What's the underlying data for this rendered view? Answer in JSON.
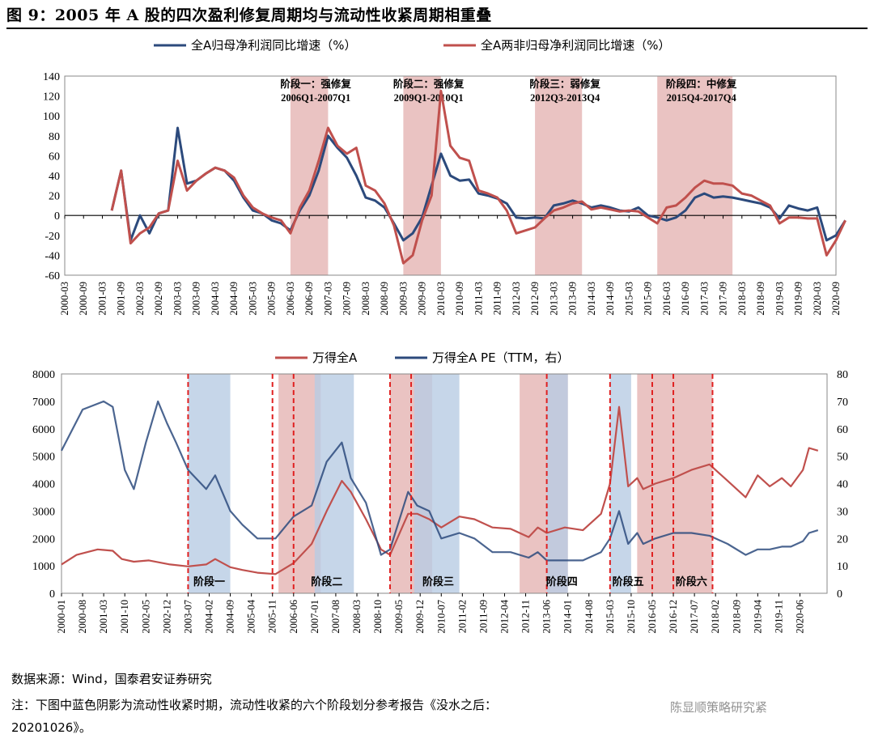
{
  "title": "图 9：2005 年 A 股的四次盈利修复周期均与流动性收紧周期相重叠",
  "colors": {
    "blue": "#2c4a7c",
    "red": "#c0504d",
    "bar_red": "#e6b8b7",
    "bar_blue": "#b8cce4",
    "dashed": "#e02020"
  },
  "footer": {
    "source": "数据来源：Wind，国泰君安证券研究",
    "note_line1": "注：下图中蓝色阴影为流动性收紧时期，流动性收紧的六个阶段划分参考报告《没水之后：",
    "note_line2": "20201026》。",
    "watermark": "陈显顺策略研究紧"
  },
  "chart_data": [
    {
      "type": "line",
      "legend": [
        "全A归母净利润同比增速（%）",
        "全A两非归母净利润同比增速（%）"
      ],
      "ylim": [
        -60,
        140
      ],
      "yticks": [
        -60,
        -40,
        -20,
        0,
        20,
        40,
        60,
        80,
        100,
        120,
        140
      ],
      "xticks": [
        "2000-03",
        "2000-09",
        "2001-03",
        "2001-09",
        "2002-03",
        "2002-09",
        "2003-03",
        "2003-09",
        "2004-03",
        "2004-09",
        "2005-03",
        "2005-09",
        "2006-03",
        "2006-09",
        "2007-03",
        "2007-09",
        "2008-03",
        "2008-09",
        "2009-03",
        "2009-09",
        "2010-03",
        "2010-09",
        "2011-03",
        "2011-09",
        "2012-03",
        "2012-09",
        "2013-03",
        "2013-09",
        "2014-03",
        "2014-09",
        "2015-03",
        "2015-09",
        "2016-03",
        "2016-09",
        "2017-03",
        "2017-09",
        "2018-03",
        "2018-09",
        "2019-03",
        "2019-09",
        "2020-03",
        "2020-09"
      ],
      "shaded_periods": [
        {
          "label": "阶段一：强修复",
          "range": "2006Q1-2007Q1",
          "from": "2006-03",
          "to": "2007-03"
        },
        {
          "label": "阶段二：强修复",
          "range": "2009Q1-2010Q1",
          "from": "2009-03",
          "to": "2010-03"
        },
        {
          "label": "阶段三：弱修复",
          "range": "2012Q3-2013Q4",
          "from": "2012-09",
          "to": "2013-12"
        },
        {
          "label": "阶段四：中修复",
          "range": "2015Q4-2017Q4",
          "from": "2015-12",
          "to": "2017-12"
        }
      ],
      "series": [
        {
          "name": "全A归母净利润同比增速（%）",
          "x": [
            "2001-06",
            "2001-09",
            "2001-12",
            "2002-03",
            "2002-06",
            "2002-09",
            "2002-12",
            "2003-03",
            "2003-06",
            "2003-09",
            "2003-12",
            "2004-03",
            "2004-06",
            "2004-09",
            "2004-12",
            "2005-03",
            "2005-06",
            "2005-09",
            "2005-12",
            "2006-03",
            "2006-06",
            "2006-09",
            "2006-12",
            "2007-03",
            "2007-06",
            "2007-09",
            "2007-12",
            "2008-03",
            "2008-06",
            "2008-09",
            "2008-12",
            "2009-03",
            "2009-06",
            "2009-09",
            "2009-12",
            "2010-03",
            "2010-06",
            "2010-09",
            "2010-12",
            "2011-03",
            "2011-06",
            "2011-09",
            "2011-12",
            "2012-03",
            "2012-06",
            "2012-09",
            "2012-12",
            "2013-03",
            "2013-06",
            "2013-09",
            "2013-12",
            "2014-03",
            "2014-06",
            "2014-09",
            "2014-12",
            "2015-03",
            "2015-06",
            "2015-09",
            "2015-12",
            "2016-03",
            "2016-06",
            "2016-09",
            "2016-12",
            "2017-03",
            "2017-06",
            "2017-09",
            "2017-12",
            "2018-03",
            "2018-06",
            "2018-09",
            "2018-12",
            "2019-03",
            "2019-06",
            "2019-09",
            "2019-12",
            "2020-03",
            "2020-06",
            "2020-09",
            "2020-12"
          ],
          "values": [
            5,
            45,
            -25,
            0,
            -18,
            2,
            5,
            88,
            32,
            35,
            42,
            48,
            45,
            35,
            18,
            5,
            2,
            -5,
            -8,
            -15,
            5,
            20,
            45,
            80,
            68,
            58,
            40,
            18,
            15,
            8,
            -8,
            -25,
            -18,
            -2,
            30,
            62,
            40,
            35,
            36,
            22,
            20,
            17,
            12,
            -2,
            -3,
            -2,
            -3,
            10,
            12,
            15,
            12,
            8,
            10,
            8,
            5,
            4,
            8,
            0,
            -2,
            -5,
            -2,
            5,
            18,
            22,
            18,
            19,
            18,
            16,
            14,
            12,
            8,
            -3,
            10,
            7,
            5,
            8,
            -25,
            -20,
            -5
          ]
        },
        {
          "name": "全A两非归母净利润同比增速（%）",
          "x": [
            "2001-06",
            "2001-09",
            "2001-12",
            "2002-03",
            "2002-06",
            "2002-09",
            "2002-12",
            "2003-03",
            "2003-06",
            "2003-09",
            "2003-12",
            "2004-03",
            "2004-06",
            "2004-09",
            "2004-12",
            "2005-03",
            "2005-06",
            "2005-09",
            "2005-12",
            "2006-03",
            "2006-06",
            "2006-09",
            "2006-12",
            "2007-03",
            "2007-06",
            "2007-09",
            "2007-12",
            "2008-03",
            "2008-06",
            "2008-09",
            "2008-12",
            "2009-03",
            "2009-06",
            "2009-09",
            "2009-12",
            "2010-03",
            "2010-06",
            "2010-09",
            "2010-12",
            "2011-03",
            "2011-06",
            "2011-09",
            "2011-12",
            "2012-03",
            "2012-06",
            "2012-09",
            "2012-12",
            "2013-03",
            "2013-06",
            "2013-09",
            "2013-12",
            "2014-03",
            "2014-06",
            "2014-09",
            "2014-12",
            "2015-03",
            "2015-06",
            "2015-09",
            "2015-12",
            "2016-03",
            "2016-06",
            "2016-09",
            "2016-12",
            "2017-03",
            "2017-06",
            "2017-09",
            "2017-12",
            "2018-03",
            "2018-06",
            "2018-09",
            "2018-12",
            "2019-03",
            "2019-06",
            "2019-09",
            "2019-12",
            "2020-03",
            "2020-06",
            "2020-09",
            "2020-12"
          ],
          "values": [
            5,
            45,
            -28,
            -18,
            -12,
            2,
            5,
            55,
            25,
            35,
            42,
            48,
            45,
            38,
            20,
            8,
            2,
            -2,
            -5,
            -18,
            8,
            25,
            55,
            88,
            70,
            62,
            68,
            30,
            25,
            12,
            -10,
            -48,
            -40,
            -5,
            20,
            125,
            70,
            58,
            55,
            25,
            22,
            18,
            5,
            -18,
            -15,
            -12,
            -3,
            5,
            8,
            12,
            14,
            6,
            8,
            6,
            4,
            5,
            4,
            -2,
            -8,
            8,
            10,
            18,
            28,
            35,
            32,
            32,
            30,
            22,
            20,
            15,
            10,
            -8,
            -2,
            -2,
            -3,
            -3,
            -40,
            -25,
            -5
          ]
        }
      ]
    },
    {
      "type": "line",
      "legend": [
        "万得全A",
        "万得全A PE（TTM，右）"
      ],
      "ylim_left": [
        0,
        8000
      ],
      "ylim_right": [
        0,
        80
      ],
      "yticks_left": [
        0,
        1000,
        2000,
        3000,
        4000,
        5000,
        6000,
        7000,
        8000
      ],
      "yticks_right": [
        0,
        10,
        20,
        30,
        40,
        50,
        60,
        70,
        80
      ],
      "xticks": [
        "2000-01",
        "2000-08",
        "2001-03",
        "2001-10",
        "2002-05",
        "2002-12",
        "2003-07",
        "2004-02",
        "2004-09",
        "2005-04",
        "2005-11",
        "2006-06",
        "2007-01",
        "2007-08",
        "2008-03",
        "2008-10",
        "2009-05",
        "2009-12",
        "2010-07",
        "2011-02",
        "2011-09",
        "2012-04",
        "2012-11",
        "2013-06",
        "2014-01",
        "2014-08",
        "2015-03",
        "2015-10",
        "2016-05",
        "2016-12",
        "2017-07",
        "2018-02",
        "2018-09",
        "2019-04",
        "2019-11",
        "2020-06"
      ],
      "red_shaded": [
        [
          "2006-01",
          "2007-03"
        ],
        [
          "2009-02",
          "2010-04"
        ],
        [
          "2012-09",
          "2014-01"
        ],
        [
          "2015-12",
          "2018-01"
        ]
      ],
      "blue_shaded": [
        [
          "2003-07",
          "2004-09"
        ],
        [
          "2007-01",
          "2008-02"
        ],
        [
          "2009-10",
          "2011-01"
        ],
        [
          "2013-06",
          "2014-01"
        ],
        [
          "2015-03",
          "2015-10"
        ]
      ],
      "dashed_lines": [
        "2003-07",
        "2005-11",
        "2006-06",
        "2009-02",
        "2009-09",
        "2013-06",
        "2015-03",
        "2016-05",
        "2016-12",
        "2018-01"
      ],
      "phase_labels": [
        "阶段一",
        "阶段二",
        "阶段三",
        "阶段四",
        "阶段五",
        "阶段六"
      ],
      "series": [
        {
          "name": "万得全A",
          "axis": "left",
          "x": [
            "2000-01",
            "2000-06",
            "2001-01",
            "2001-06",
            "2001-09",
            "2002-01",
            "2002-06",
            "2003-01",
            "2003-07",
            "2004-01",
            "2004-04",
            "2004-09",
            "2005-01",
            "2005-06",
            "2005-12",
            "2006-06",
            "2006-12",
            "2007-05",
            "2007-10",
            "2008-01",
            "2008-06",
            "2008-11",
            "2009-02",
            "2009-08",
            "2009-11",
            "2010-03",
            "2010-07",
            "2011-01",
            "2011-06",
            "2011-12",
            "2012-06",
            "2012-12",
            "2013-03",
            "2013-06",
            "2013-12",
            "2014-06",
            "2014-12",
            "2015-03",
            "2015-06",
            "2015-09",
            "2015-12",
            "2016-02",
            "2016-06",
            "2016-12",
            "2017-06",
            "2017-12",
            "2018-06",
            "2018-12",
            "2019-04",
            "2019-08",
            "2019-12",
            "2020-03",
            "2020-07",
            "2020-09",
            "2020-12"
          ],
          "values": [
            1050,
            1400,
            1600,
            1550,
            1250,
            1150,
            1200,
            1050,
            980,
            1050,
            1250,
            950,
            850,
            750,
            700,
            1100,
            1800,
            3000,
            4100,
            3700,
            2700,
            1600,
            1400,
            2900,
            2900,
            2700,
            2400,
            2800,
            2700,
            2400,
            2350,
            2050,
            2400,
            2200,
            2400,
            2300,
            2900,
            4000,
            6800,
            3900,
            4200,
            3800,
            4000,
            4200,
            4500,
            4700,
            4100,
            3500,
            4300,
            3900,
            4200,
            3900,
            4500,
            5300,
            5200
          ]
        },
        {
          "name": "万得全A PE（TTM，右）",
          "axis": "right",
          "x": [
            "2000-01",
            "2000-08",
            "2001-03",
            "2001-06",
            "2001-10",
            "2002-01",
            "2002-05",
            "2002-09",
            "2002-12",
            "2003-03",
            "2003-07",
            "2004-01",
            "2004-04",
            "2004-09",
            "2005-01",
            "2005-06",
            "2005-12",
            "2006-06",
            "2006-12",
            "2007-05",
            "2007-10",
            "2008-01",
            "2008-06",
            "2008-11",
            "2009-02",
            "2009-08",
            "2009-11",
            "2010-03",
            "2010-07",
            "2011-01",
            "2011-06",
            "2011-12",
            "2012-06",
            "2012-12",
            "2013-03",
            "2013-06",
            "2013-12",
            "2014-06",
            "2014-12",
            "2015-03",
            "2015-06",
            "2015-09",
            "2015-12",
            "2016-02",
            "2016-06",
            "2016-12",
            "2017-06",
            "2017-12",
            "2018-06",
            "2018-12",
            "2019-04",
            "2019-08",
            "2019-12",
            "2020-03",
            "2020-07",
            "2020-09",
            "2020-12"
          ],
          "values": [
            52,
            67,
            70,
            68,
            45,
            38,
            55,
            70,
            62,
            55,
            45,
            38,
            43,
            30,
            25,
            20,
            20,
            28,
            32,
            48,
            55,
            42,
            33,
            14,
            16,
            37,
            32,
            30,
            20,
            22,
            20,
            15,
            15,
            13,
            15,
            12,
            12,
            12,
            15,
            20,
            30,
            18,
            22,
            18,
            20,
            22,
            22,
            21,
            18,
            14,
            16,
            16,
            17,
            17,
            19,
            22,
            23
          ]
        }
      ]
    }
  ]
}
